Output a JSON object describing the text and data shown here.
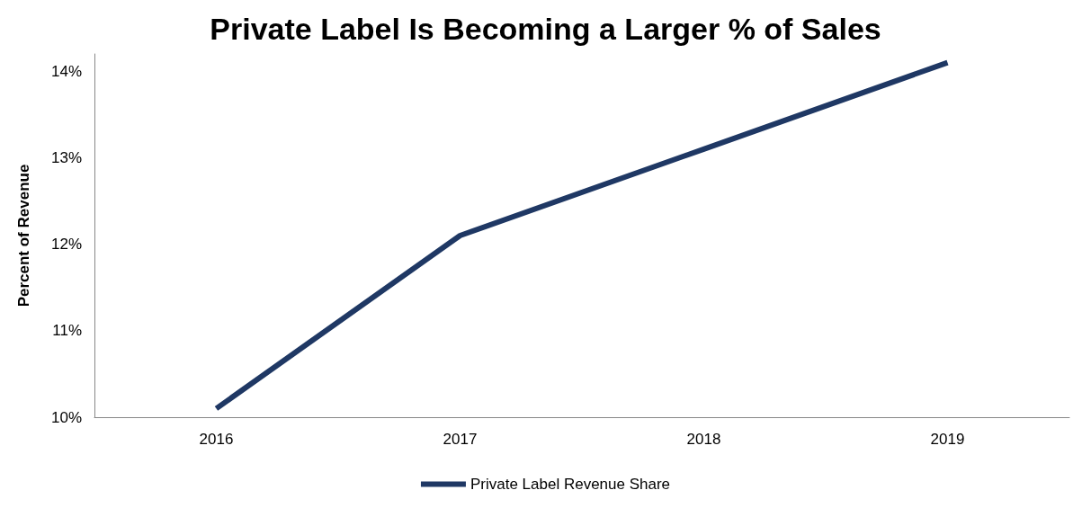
{
  "chart_data": {
    "type": "line",
    "title": "Private Label Is Becoming a Larger % of Sales",
    "ylabel": "Percent of Revenue",
    "categories": [
      "2016",
      "2017",
      "2018",
      "2019"
    ],
    "series": [
      {
        "name": "Private Label Revenue Share",
        "color": "#1f3864",
        "values": [
          10.1,
          12.1,
          13.1,
          14.1
        ]
      }
    ],
    "ylim": [
      10,
      14.2
    ],
    "yticks": [
      {
        "value": 10,
        "label": "10%"
      },
      {
        "value": 11,
        "label": "11%"
      },
      {
        "value": 12,
        "label": "12%"
      },
      {
        "value": 13,
        "label": "13%"
      },
      {
        "value": 14,
        "label": "14%"
      }
    ],
    "grid": false,
    "legend": "bottom",
    "marker": "none",
    "line_style": "solid"
  }
}
